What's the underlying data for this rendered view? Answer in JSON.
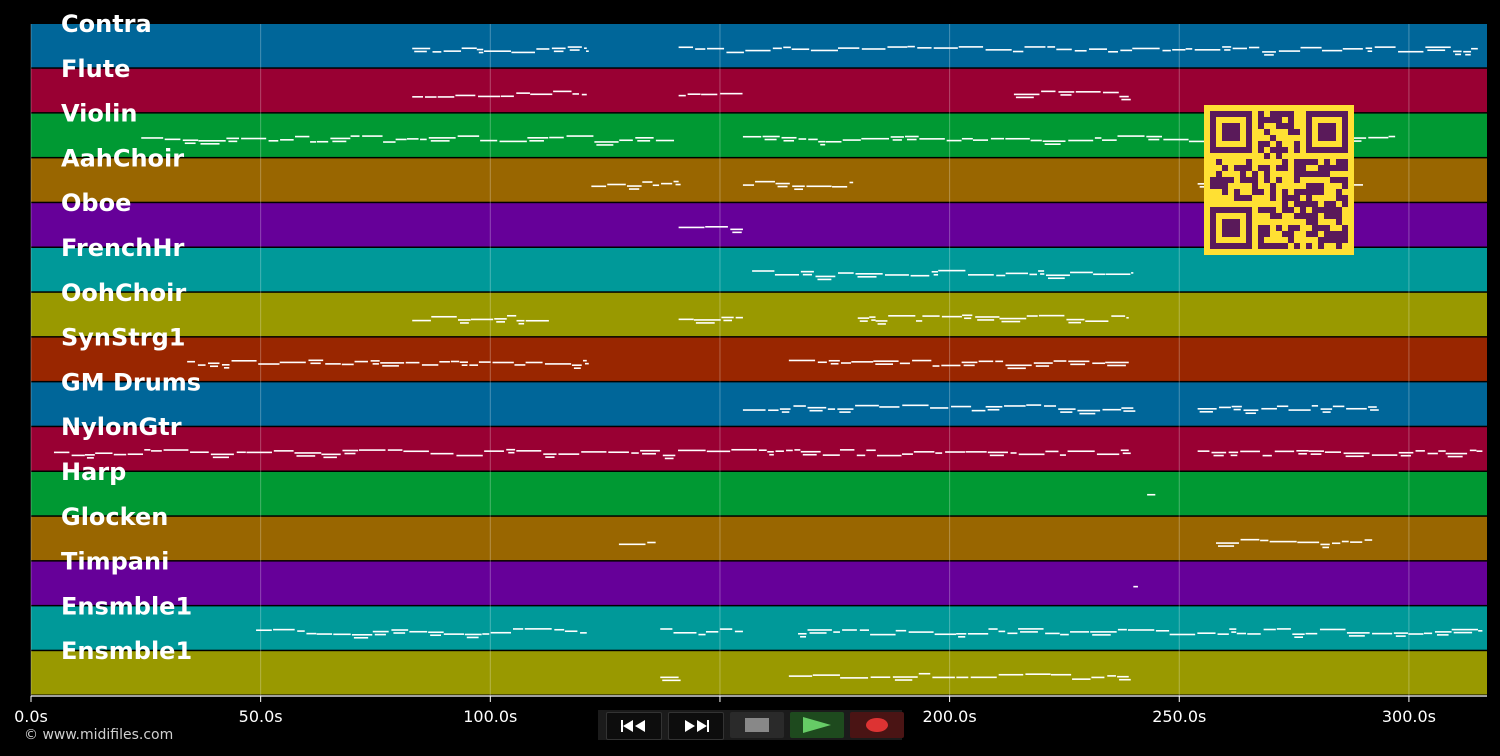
{
  "tracks": [
    {
      "name": "Contra",
      "color": "#006699"
    },
    {
      "name": "Flute",
      "color": "#990033"
    },
    {
      "name": "Violin",
      "color": "#009933"
    },
    {
      "name": "AahChoir",
      "color": "#996600"
    },
    {
      "name": "Oboe",
      "color": "#660099"
    },
    {
      "name": "FrenchHr",
      "color": "#009999"
    },
    {
      "name": "OohChoir",
      "color": "#999900"
    },
    {
      "name": "SynStrg1",
      "color": "#992600"
    },
    {
      "name": "GM Drums",
      "color": "#006699"
    },
    {
      "name": "NylonGtr",
      "color": "#990033"
    },
    {
      "name": "Harp",
      "color": "#009933"
    },
    {
      "name": "Glocken",
      "color": "#996600"
    },
    {
      "name": "Timpani",
      "color": "#660099"
    },
    {
      "name": "Ensmble1",
      "color": "#009999"
    },
    {
      "name": "Ensmble1",
      "color": "#999900"
    }
  ],
  "time_axis": {
    "range_seconds": [
      0,
      317
    ],
    "ticks": [
      {
        "value": 0,
        "label": "0.0s"
      },
      {
        "value": 50,
        "label": "50.0s"
      },
      {
        "value": 100,
        "label": "100.0s"
      },
      {
        "value": 150,
        "label": "150.0s"
      },
      {
        "value": 200,
        "label": "200.0s"
      },
      {
        "value": 250,
        "label": "250.0s"
      },
      {
        "value": 300,
        "label": "300.0s"
      }
    ]
  },
  "note_segments": [
    {
      "track": 0,
      "start": 83,
      "end": 121
    },
    {
      "track": 0,
      "start": 141,
      "end": 315
    },
    {
      "track": 1,
      "start": 83,
      "end": 121
    },
    {
      "track": 1,
      "start": 141,
      "end": 155
    },
    {
      "track": 1,
      "start": 214,
      "end": 239
    },
    {
      "track": 2,
      "start": 24,
      "end": 140
    },
    {
      "track": 2,
      "start": 155,
      "end": 297
    },
    {
      "track": 3,
      "start": 122,
      "end": 141
    },
    {
      "track": 3,
      "start": 155,
      "end": 179
    },
    {
      "track": 3,
      "start": 254,
      "end": 290
    },
    {
      "track": 4,
      "start": 141,
      "end": 155
    },
    {
      "track": 5,
      "start": 157,
      "end": 240
    },
    {
      "track": 6,
      "start": 83,
      "end": 113
    },
    {
      "track": 6,
      "start": 141,
      "end": 155
    },
    {
      "track": 6,
      "start": 180,
      "end": 239
    },
    {
      "track": 7,
      "start": 34,
      "end": 121
    },
    {
      "track": 7,
      "start": 165,
      "end": 239
    },
    {
      "track": 8,
      "start": 155,
      "end": 240
    },
    {
      "track": 8,
      "start": 254,
      "end": 293
    },
    {
      "track": 9,
      "start": 5,
      "end": 239
    },
    {
      "track": 9,
      "start": 254,
      "end": 316
    },
    {
      "track": 10,
      "start": 243,
      "end": 245
    },
    {
      "track": 11,
      "start": 128,
      "end": 136
    },
    {
      "track": 11,
      "start": 258,
      "end": 292
    },
    {
      "track": 12,
      "start": 240,
      "end": 241
    },
    {
      "track": 13,
      "start": 49,
      "end": 121
    },
    {
      "track": 13,
      "start": 137,
      "end": 155
    },
    {
      "track": 13,
      "start": 167,
      "end": 316
    },
    {
      "track": 14,
      "start": 137,
      "end": 141
    },
    {
      "track": 14,
      "start": 165,
      "end": 239
    }
  ],
  "copyright": "© www.midifiles.com",
  "controls": {
    "rewind_icon": "rewind-icon",
    "fast_forward_icon": "fast-forward-icon",
    "stop_icon": "stop-icon",
    "play_icon": "play-icon",
    "record_icon": "record-icon"
  },
  "colors": {
    "background": "#000000",
    "qr_background": "#ffe033",
    "qr_foreground": "#5a1a5a",
    "note": "#ffffff",
    "play": "#66cc66",
    "record": "#dd3333",
    "stop": "#888888"
  }
}
